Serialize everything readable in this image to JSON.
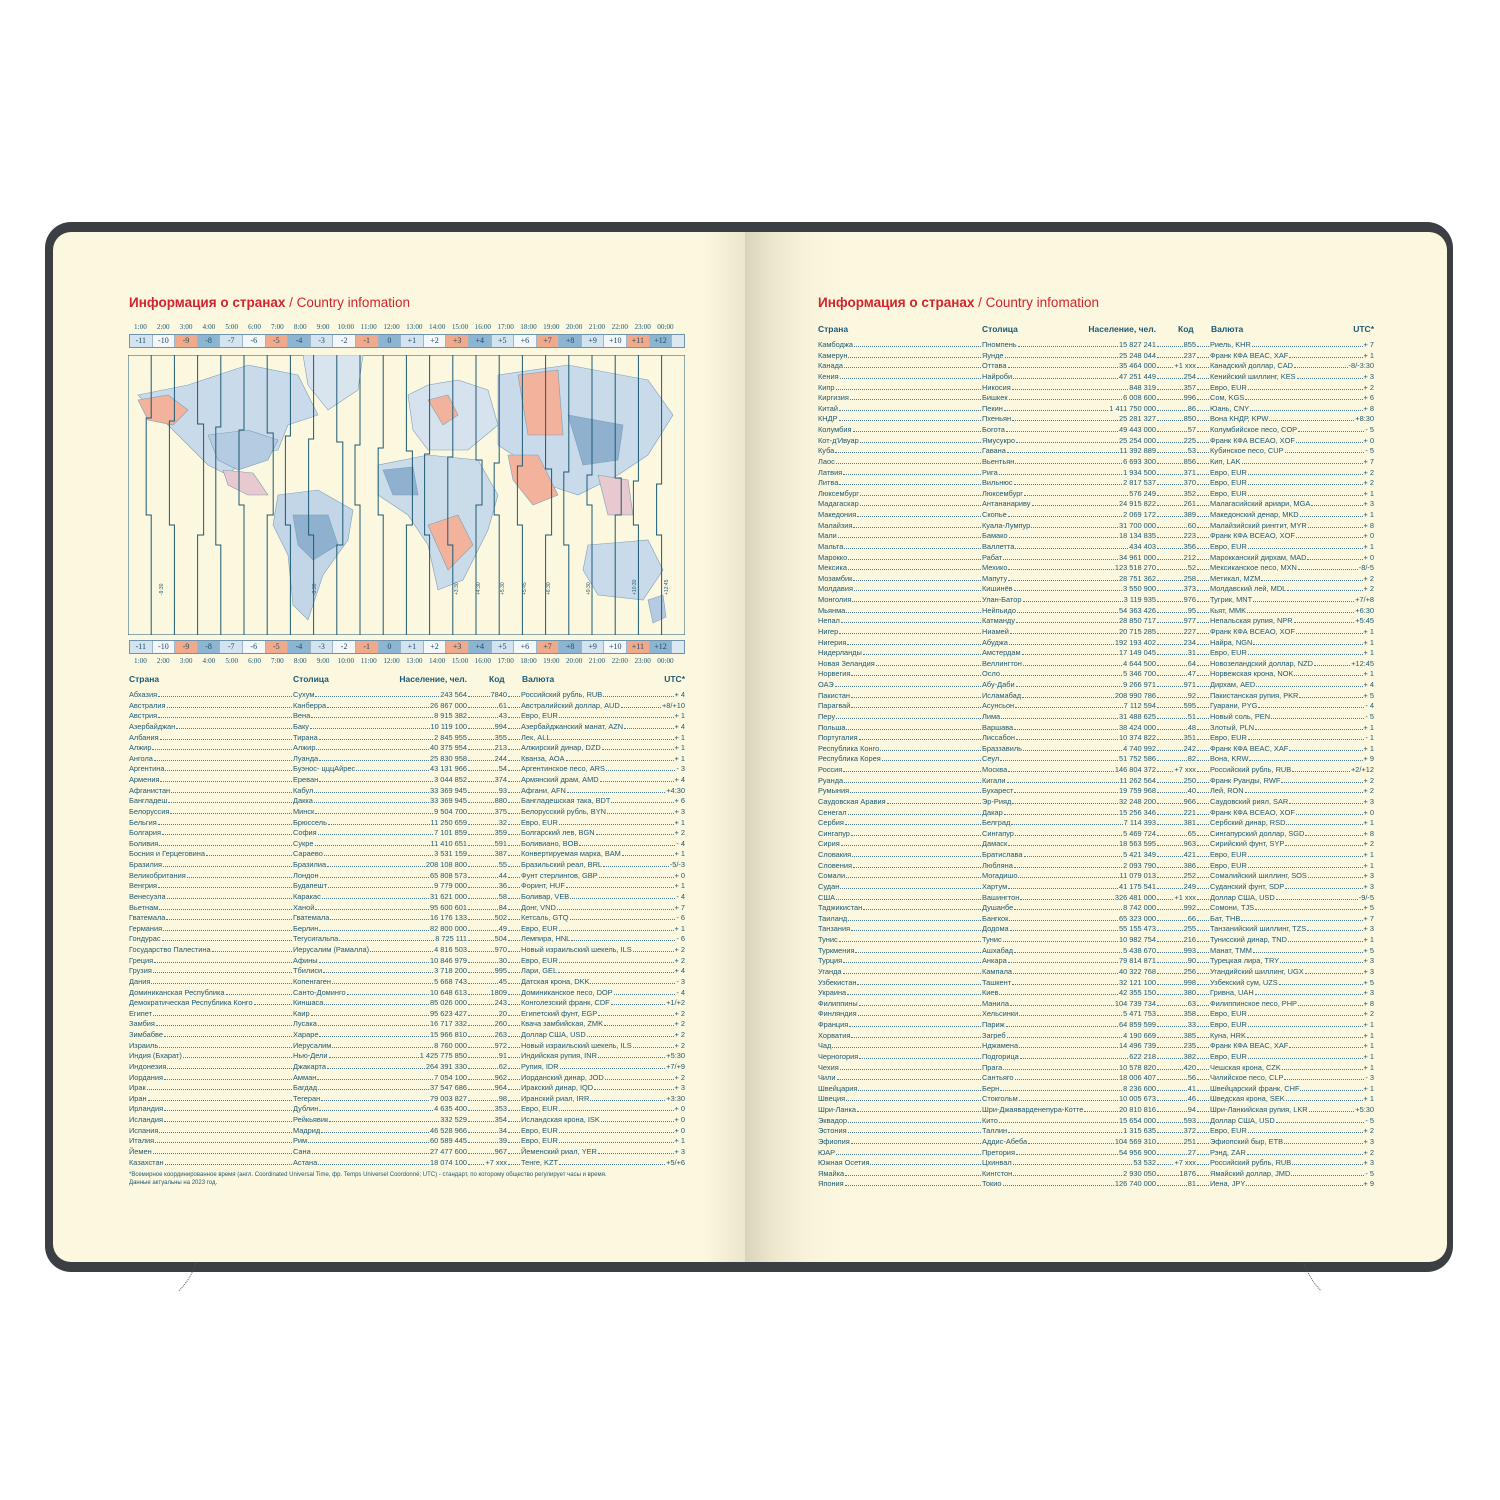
{
  "left": {
    "title_ru": "Информация о странах",
    "title_sep": " / ",
    "title_en": "Country infomation",
    "hours": [
      "1:00",
      "2:00",
      "3:00",
      "4:00",
      "5:00",
      "6:00",
      "7:00",
      "8:00",
      "9:00",
      "10:00",
      "11:00",
      "12:00",
      "13:00",
      "14:00",
      "15:00",
      "16:00",
      "17:00",
      "18:00",
      "19:00",
      "20:00",
      "21:00",
      "22:00",
      "23:00",
      "00:00"
    ],
    "offsets": [
      "-11",
      "-10",
      "-9",
      "-8",
      "-7",
      "-6",
      "-5",
      "-4",
      "-3",
      "-2",
      "-1",
      "0",
      "+1",
      "+2",
      "+3",
      "+4",
      "+5",
      "+6",
      "+7",
      "+8",
      "+9",
      "+10",
      "+11",
      "+12"
    ],
    "map_labels": [
      "-3:30",
      "-9:30",
      "+3:30",
      "+4:30",
      "+5:30",
      "+5:45",
      "+6:30",
      "+9:30",
      "+10:30",
      "+12:45"
    ],
    "headers": {
      "country": "Страна",
      "capital": "Столица",
      "population": "Население, чел.",
      "code": "Код",
      "currency": "Валюта",
      "utc": "UTC*"
    },
    "rows": [
      [
        "Абхазия",
        "Сухум",
        "243 564",
        "7840",
        "Российский рубль, RUB",
        "+ 4"
      ],
      [
        "Австралия",
        "Канберра",
        "26 867 000",
        "61",
        "Австралийский доллар, AUD",
        "+8/+10"
      ],
      [
        "Австрия",
        "Вена",
        "8 915 382",
        "43",
        "Евро, EUR",
        "+ 1"
      ],
      [
        "Азербайджан",
        "Баку",
        "10 119 100",
        "994",
        "Азербайджанский манат, AZN",
        "+ 4"
      ],
      [
        "Албания",
        "Тирана",
        "2 845 955",
        "355",
        "Лек, ALL",
        "+ 1"
      ],
      [
        "Алжир",
        "Алжир",
        "40 375 954",
        "213",
        "Алжирский динар, DZD",
        "+ 1"
      ],
      [
        "Ангола",
        "Луанда",
        "25 830 958",
        "244",
        "Кванза, AOA",
        "+ 1"
      ],
      [
        "Аргентина",
        "Буэнос- цццАйрес",
        "43 131 966",
        "54",
        "Аргентинское песо, ARS",
        "- 3"
      ],
      [
        "Армения",
        "Ереван",
        "3 044 852",
        "374",
        "Армянский драм, AMD",
        "+ 4"
      ],
      [
        "Афганистан",
        "Кабул",
        "33 369 945",
        "93",
        "Афгани, AFN",
        "+4:30"
      ],
      [
        "Бангладеш",
        "Дакка",
        "33 369 945",
        "880",
        "Бангладешская така, BDT",
        "+ 6"
      ],
      [
        "Белоруссия",
        "Минск",
        "9 504 700",
        "375",
        "Белорусский рубль, BYN",
        "+ 3"
      ],
      [
        "Бельгия",
        "Брюссель",
        "11 250 659",
        "32",
        "Евро, EUR",
        "+ 1"
      ],
      [
        "Болгария",
        "София",
        "7 101 859",
        "359",
        "Болгарский лев, BGN",
        "+ 2"
      ],
      [
        "Боливия",
        "Сукре",
        "11 410 651",
        "591",
        "Боливиано, BOB",
        "- 4"
      ],
      [
        "Босния и Герцеговина",
        "Сараево",
        "3 531 159",
        "387",
        "Конвертируемая марка, BAM",
        "+ 1"
      ],
      [
        "Бразилия",
        "Бразилиа",
        "208 108 800",
        "55",
        "Бразильский реал, BRL",
        "-5/-3"
      ],
      [
        "Великобритания",
        "Лондон",
        "65 808 573",
        "44",
        "Фунт стерлингов, GBP",
        "+ 0"
      ],
      [
        "Венгрия",
        "Будапешт",
        "9 779 000",
        "36",
        "Форинт, HUF",
        "+ 1"
      ],
      [
        "Венесуэла",
        "Каракас",
        "31 621 000",
        "58",
        "Боливар, VEB",
        "- 4"
      ],
      [
        "Вьетнам",
        "Ханой",
        "95 600 601",
        "84",
        "Донг, VND",
        "+ 7"
      ],
      [
        "Гватемала",
        "Гватемала",
        "16 176 133",
        "502",
        "Кетсаль, GTQ",
        "- 6"
      ],
      [
        "Германия",
        "Берлин",
        "82 800 000",
        "49",
        "Евро, EUR",
        "+ 1"
      ],
      [
        "Гондурас",
        "Тегусигальпа",
        "8 725 111",
        "504",
        "Лемпира, HNL",
        "- 6"
      ],
      [
        "Государство Палестина",
        "Иерусалим (Рамалла)",
        "4 816 503",
        "970",
        "Новый израильский шекель, ILS",
        "+ 2"
      ],
      [
        "Греция",
        "Афины",
        "10 846 979",
        "30",
        "Евро, EUR",
        "+ 2"
      ],
      [
        "Грузия",
        "Тбилиси",
        "3 718 200",
        "995",
        "Лари, GEL",
        "+ 4"
      ],
      [
        "Дания",
        "Копенгаген",
        "5 668 743",
        "45",
        "Датская крона, DKK",
        "- 3"
      ],
      [
        "Доминиканская Республика",
        "Санто-Доминго",
        "10 648 613",
        "1809",
        "Доминиканское песо, DOP",
        "- 4"
      ],
      [
        "Демократическая Республика Конго",
        "Киншаса",
        "85 026 000",
        "243",
        "Конголезский франк, CDF",
        "+1/+2"
      ],
      [
        "Египет",
        "Каир",
        "95 623 427",
        "20",
        "Египетский фунт, EGP",
        "+ 2"
      ],
      [
        "Замбия",
        "Лусака",
        "16 717 332",
        "260",
        "Квача замбийская, ZMK",
        "+ 2"
      ],
      [
        "Зимбабве",
        "Хараре",
        "15 966 810",
        "263",
        "Доллар США, USD",
        "+ 2"
      ],
      [
        "Израиль",
        "Иерусалим",
        "8 760 000",
        "972",
        "Новый израильский шекель, ILS",
        "+ 2"
      ],
      [
        "Индия (Бхарат)",
        "Нью-Дели",
        "1 425 775 850",
        "91",
        "Индийская рупия, INR",
        "+5:30"
      ],
      [
        "Индонезия",
        "Джакарта",
        "264 391 330",
        "62",
        "Рупия, IDR",
        "+7/+9"
      ],
      [
        "Иордания",
        "Амман",
        "7 054 100",
        "962",
        "Иорданский динар, JOD",
        "+ 2"
      ],
      [
        "Ирак",
        "Багдад",
        "37 547 686",
        "964",
        "Иракский динар, IQD",
        "+ 3"
      ],
      [
        "Иран",
        "Тегеран",
        "79 003 827",
        "98",
        "Иранский риал, IRR",
        "+3:30"
      ],
      [
        "Ирландия",
        "Дублин",
        "4 635 400",
        "353",
        "Евро, EUR",
        "+ 0"
      ],
      [
        "Исландия",
        "Рейкьявик",
        "332 529",
        "354",
        "Исландская крона, ISK",
        "+ 0"
      ],
      [
        "Испания",
        "Мадрид",
        "46 528 966",
        "34",
        "Евро, EUR",
        "+ 0"
      ],
      [
        "Италия",
        "Рим",
        "60 589 445",
        "39",
        "Евро, EUR",
        "+ 1"
      ],
      [
        "Йемен",
        "Сана",
        "27 477 600",
        "967",
        "Йеменский риал, YER",
        "+ 3"
      ],
      [
        "Казахстан",
        "Астана",
        "18 074 100",
        "+7 xxx",
        "Тенге, KZT",
        "+5/+6"
      ]
    ],
    "footnote_1": "*Всемирное координированное время (англ. Coordinated Universal Time, фр. Temps Universel Coordonné; UTC) - стандарт, по которому общество регулирует часы и время.",
    "footnote_2": "Данные актуальны на 2023 год."
  },
  "right": {
    "title_ru": "Информация о странах",
    "title_sep": " / ",
    "title_en": "Country infomation",
    "headers": {
      "country": "Страна",
      "capital": "Столица",
      "population": "Население, чел.",
      "code": "Код",
      "currency": "Валюта",
      "utc": "UTC*"
    },
    "rows": [
      [
        "Камбоджа",
        "Пномпень",
        "15 827 241",
        "855",
        "Риель, KHR",
        "+ 7"
      ],
      [
        "Камерун",
        "Яунде",
        "25 248 044",
        "237",
        "Франк КФА BEAC, XAF",
        "+ 1"
      ],
      [
        "Канада",
        "Оттава",
        "35 464 000",
        "+1 xxx",
        "Канадский доллар, CAD",
        "-8/-3:30"
      ],
      [
        "Кения",
        "Найроби",
        "47 251 449",
        "254",
        "Кенийский шиллинг, KES",
        "+ 3"
      ],
      [
        "Кипр",
        "Никосия",
        "848 319",
        "357",
        "Евро, EUR",
        "+ 2"
      ],
      [
        "Киргизия",
        "Бишкек",
        "6 008 600",
        "996",
        "Сом, KGS",
        "+ 6"
      ],
      [
        "Китай",
        "Пекин",
        "1 411 750 000",
        "86",
        "Юань, CNY",
        "+ 8"
      ],
      [
        "КНДР",
        "Пхеньян",
        "25 281 327",
        "850",
        "Вона КНДР, KPW",
        "+8:30"
      ],
      [
        "Колумбия",
        "Богота",
        "49 443 000",
        "57",
        "Колумбийское песо, COP",
        "- 5"
      ],
      [
        "Кот-д'Ивуар",
        "Ямусукро",
        "25 254 000",
        "225",
        "Франк КФА BCEAO, XOF",
        "+ 0"
      ],
      [
        "Куба",
        "Гавана",
        "11 392 889",
        "53",
        "Кубинское песо, CUP",
        "- 5"
      ],
      [
        "Лаос",
        "Вьентьян",
        "6 693 300",
        "856",
        "Кип, LAK",
        "+ 7"
      ],
      [
        "Латвия",
        "Рига",
        "1 934 500",
        "371",
        "Евро, EUR",
        "+ 2"
      ],
      [
        "Литва",
        "Вильнюс",
        "2 817 537",
        "370",
        "Евро, EUR",
        "+ 2"
      ],
      [
        "Люксембург",
        "Люксембург",
        "576 249",
        "352",
        "Евро, EUR",
        "+ 1"
      ],
      [
        "Мадагаскар",
        "Антананариву",
        "24 915 822",
        "261",
        "Малагасийский ариари, MGA",
        "+ 3"
      ],
      [
        "Македония",
        "Скопье",
        "2 069 172",
        "389",
        "Македонский денар, MKD",
        "+ 1"
      ],
      [
        "Малайзия",
        "Куала-Лумпур",
        "31 700 000",
        "60",
        "Малайзийский ринггит, MYR",
        "+ 8"
      ],
      [
        "Мали",
        "Бамако",
        "18 134 835",
        "223",
        "Франк КФА BCEAO, XOF",
        "+ 0"
      ],
      [
        "Мальта",
        "Валлетта",
        "434 403",
        "356",
        "Евро, EUR",
        "+ 1"
      ],
      [
        "Марокко",
        "Рабат",
        "34 961 000",
        "212",
        "Марокканский дирхам, MAD",
        "+ 0"
      ],
      [
        "Мексика",
        "Мехико",
        "123 518 270",
        "52",
        "Мексиканское песо, MXN",
        "-8/-5"
      ],
      [
        "Мозамбик",
        "Мапуту",
        "28 751 362",
        "258",
        "Метикал, MZM",
        "+ 2"
      ],
      [
        "Молдавия",
        "Кишинёв",
        "3 550 900",
        "373",
        "Молдавский лей, MDL",
        "+ 2"
      ],
      [
        "Монголия",
        "Улан-Батор",
        "3 119 935",
        "976",
        "Тугрик, MNT",
        "+7/+8"
      ],
      [
        "Мьянма",
        "Нейпьидо",
        "54 363 426",
        "95",
        "Кьят, MMK",
        "+6:30"
      ],
      [
        "Непал",
        "Катманду",
        "28 850 717",
        "977",
        "Непальская рупия, NPR",
        "+5:45"
      ],
      [
        "Нигер",
        "Ниамей",
        "20 715 285",
        "227",
        "Франк КФА BCEAO, XOF",
        "+ 1"
      ],
      [
        "Нигерия",
        "Абуджа",
        "192 193 402",
        "234",
        "Найра, NGN",
        "+ 1"
      ],
      [
        "Нидерланды",
        "Амстердам",
        "17 149 045",
        "31",
        "Евро, EUR",
        "+ 1"
      ],
      [
        "Новая Зеландия",
        "Веллингтон",
        "4 644 500",
        "64",
        "Новозеландский доллар, NZD",
        "+12:45"
      ],
      [
        "Норвегия",
        "Осло",
        "5 346 700",
        "47",
        "Норвежская крона, NOK",
        "+ 1"
      ],
      [
        "ОАЭ",
        "Абу-Даби",
        "9 266 971",
        "971",
        "Дирхам, AED",
        "+ 4"
      ],
      [
        "Пакистан",
        "Исламабад",
        "208 990 786",
        "92",
        "Пакистанская рупия, PKR",
        "+ 5"
      ],
      [
        "Парагвай",
        "Асунсьон",
        "7 112 594",
        "595",
        "Гуарани, PYG",
        "- 4"
      ],
      [
        "Перу",
        "Лима",
        "31 488 625",
        "51",
        "Новый соль, PEN",
        "- 5"
      ],
      [
        "Польша",
        "Варшава",
        "38 424 000",
        "48",
        "Злотый, PLN",
        "+ 1"
      ],
      [
        "Португалия",
        "Лиссабон",
        "10 374 822",
        "351",
        "Евро, EUR",
        "- 1"
      ],
      [
        "Республика Конго",
        "Браззавиль",
        "4 740 992",
        "242",
        "Франк КФА BEAC, XAF",
        "+ 1"
      ],
      [
        "Республика Корея",
        "Сеул",
        "51 752 586",
        "82",
        "Вона, KRW",
        "+ 9"
      ],
      [
        "Россия",
        "Москва",
        "146 804 372",
        "+7 xxx",
        "Российский рубль, RUB",
        "+2/+12"
      ],
      [
        "Руанда",
        "Кигали",
        "11 262 564",
        "250",
        "Франк Руанды, RWF",
        "+ 2"
      ],
      [
        "Румыния",
        "Бухарест",
        "19 759 968",
        "40",
        "Лей, RON",
        "+ 2"
      ],
      [
        "Саудовская Аравия",
        "Эр-Рияд",
        "32 248 200",
        "966",
        "Саудовский риял, SAR",
        "+ 3"
      ],
      [
        "Сенегал",
        "Дакар",
        "15 256 346",
        "221",
        "Франк КФА BCEAO, XOF",
        "+ 0"
      ],
      [
        "Сербия",
        "Белград",
        "7 114 393",
        "381",
        "Сербский динар, RSD",
        "+ 1"
      ],
      [
        "Сингапур",
        "Сингапур",
        "5 469 724",
        "65",
        "Сингапурский доллар, SGD",
        "+ 8"
      ],
      [
        "Сирия",
        "Дамаск",
        "18 563 595",
        "963",
        "Сирийский фунт, SYP",
        "+ 2"
      ],
      [
        "Словакия",
        "Братислава",
        "5 421 349",
        "421",
        "Евро, EUR",
        "+ 1"
      ],
      [
        "Словения",
        "Любляна",
        "2 093 790",
        "386",
        "Евро, EUR",
        "+ 1"
      ],
      [
        "Сомали",
        "Могадишо",
        "11 079 013",
        "252",
        "Сомалийский шиллинг, SOS",
        "+ 3"
      ],
      [
        "Судан",
        "Хартум",
        "41 175 541",
        "249",
        "Суданский фунт, SDP",
        "+ 3"
      ],
      [
        "США",
        "Вашингтон",
        "326 481 000",
        "+1 xxx",
        "Доллар США, USD",
        "-9/-5"
      ],
      [
        "Таджикистан",
        "Душанбе",
        "8 742 000",
        "992",
        "Сомони, TJS",
        "+ 5"
      ],
      [
        "Таиланд",
        "Бангкок",
        "65 323 000",
        "66",
        "Бат, THB",
        "+ 7"
      ],
      [
        "Танзания",
        "Додома",
        "55 155 473",
        "255",
        "Танзанийский шиллинг, TZS",
        "+ 3"
      ],
      [
        "Тунис",
        "Тунис",
        "10 982 754",
        "216",
        "Тунисский динар, TND",
        "+ 1"
      ],
      [
        "Туркмения",
        "Ашхабад",
        "5 438 670",
        "993",
        "Манат, TMM",
        "+ 5"
      ],
      [
        "Турция",
        "Анкара",
        "79 814 871",
        "90",
        "Турецкая лира, TRY",
        "+ 3"
      ],
      [
        "Уганда",
        "Кампала",
        "40 322 768",
        "256",
        "Угандийский шиллинг, UGX",
        "+ 3"
      ],
      [
        "Узбекистан",
        "Ташкент",
        "32 121 100",
        "998",
        "Узбекский сум, UZS",
        "+ 5"
      ],
      [
        "Украина",
        "Киев",
        "42 355 150",
        "380",
        "Гривна, UAH",
        "+ 3"
      ],
      [
        "Филиппины",
        "Манила",
        "104 739 734",
        "63",
        "Филиппинское песо, PHP",
        "+ 8"
      ],
      [
        "Финляндия",
        "Хельсинки",
        "5 471 753",
        "358",
        "Евро, EUR",
        "+ 2"
      ],
      [
        "Франция",
        "Париж",
        "64 859 599",
        "33",
        "Евро, EUR",
        "+ 1"
      ],
      [
        "Хорватия",
        "Загреб",
        "4 190 669",
        "385",
        "Куна, HRK",
        "+ 1"
      ],
      [
        "Чад",
        "Нджамена",
        "14 496 739",
        "235",
        "Франк КФА BEAC, XAF",
        "+ 1"
      ],
      [
        "Черногория",
        "Подгорица",
        "622 218",
        "382",
        "Евро, EUR",
        "+ 1"
      ],
      [
        "Чехия",
        "Прага",
        "10 578 820",
        "420",
        "Чешская крона, CZK",
        "+ 1"
      ],
      [
        "Чили",
        "Сантьяго",
        "18 006 407",
        "56",
        "Чилийское песо, CLP",
        "- 3"
      ],
      [
        "Швейцария",
        "Берн",
        "8 236 600",
        "41",
        "Швейцарский франк, CHF",
        "+ 1"
      ],
      [
        "Швеция",
        "Стокгольм",
        "10 005 673",
        "46",
        "Шведская крона, SEK",
        "+ 1"
      ],
      [
        "Шри-Ланка",
        "Шри-Джаяварденепура-Котте",
        "20 810 816",
        "94",
        "Шри-Ланкийская рупия, LKR",
        "+5:30"
      ],
      [
        "Эквадор",
        "Кито",
        "15 654 000",
        "593",
        "Доллар США, USD",
        "- 5"
      ],
      [
        "Эстония",
        "Таллин",
        "1 315 635",
        "372",
        "Евро, EUR",
        "+ 2"
      ],
      [
        "Эфиопия",
        "Аддис-Абеба",
        "104 569 310",
        "251",
        "Эфиопский быр, ETB",
        "+ 3"
      ],
      [
        "ЮАР",
        "Претория",
        "54 956 900",
        "27",
        "Рэнд, ZAR",
        "+ 2"
      ],
      [
        "Южная Осетия",
        "Цхинвал",
        "53 532",
        "+7 xxx",
        "Российский рубль, RUB",
        "+ 3"
      ],
      [
        "Ямайка",
        "Кингстон",
        "2 930 050",
        "1876",
        "Ямайский доллар, JMD",
        "- 5"
      ],
      [
        "Япония",
        "Токио",
        "126 740 000",
        "81",
        "Иена, JPY",
        "+ 9"
      ]
    ]
  },
  "colors": {
    "title": "#d4232b",
    "text": "#1d5a73",
    "page": "#fcf7df",
    "cover": "#3b3e42",
    "tz_light": "#d3e4f0",
    "tz_white": "#f3f7f8",
    "tz_salmon": "#f0a98a",
    "tz_blue": "#8db4d0"
  }
}
